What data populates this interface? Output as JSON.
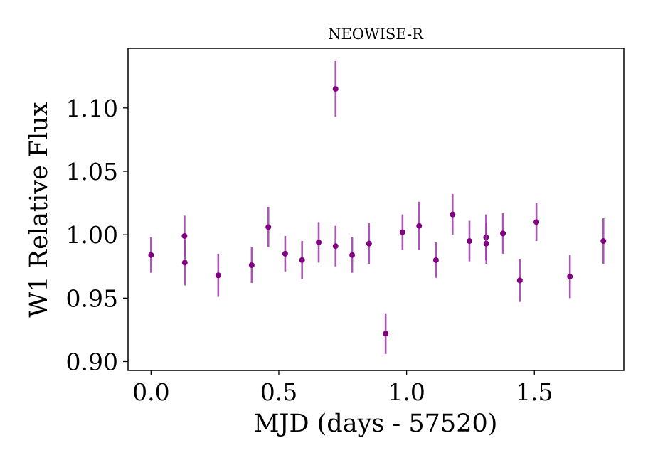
{
  "chart_data": {
    "type": "scatter",
    "title": "NEOWISE-R",
    "xlabel": "MJD (days - 57520)",
    "ylabel": "W1 Relative Flux",
    "xlim": [
      -0.09,
      1.85
    ],
    "ylim": [
      0.893,
      1.147
    ],
    "xticks": [
      {
        "value": 0.0,
        "label": "0.0"
      },
      {
        "value": 0.5,
        "label": "0.5"
      },
      {
        "value": 1.0,
        "label": "1.0"
      },
      {
        "value": 1.5,
        "label": "1.5"
      }
    ],
    "yticks": [
      {
        "value": 0.9,
        "label": "0.90"
      },
      {
        "value": 0.95,
        "label": "0.95"
      },
      {
        "value": 1.0,
        "label": "1.00"
      },
      {
        "value": 1.05,
        "label": "1.05"
      },
      {
        "value": 1.1,
        "label": "1.10"
      }
    ],
    "grid": false,
    "marker_color": "#800080",
    "errorbar_color": "#9b3aa6",
    "series": [
      {
        "x": [
          0.0,
          0.131,
          0.132,
          0.263,
          0.394,
          0.459,
          0.525,
          0.591,
          0.656,
          0.722,
          0.722,
          0.787,
          0.853,
          0.918,
          0.984,
          1.049,
          1.115,
          1.18,
          1.246,
          1.311,
          1.312,
          1.377,
          1.443,
          1.508,
          1.639,
          1.77
        ],
        "y": [
          0.984,
          0.999,
          0.978,
          0.968,
          0.976,
          1.006,
          0.985,
          0.98,
          0.994,
          1.115,
          0.991,
          0.984,
          0.993,
          0.922,
          1.002,
          1.007,
          0.98,
          1.016,
          0.995,
          0.998,
          0.993,
          1.001,
          0.964,
          1.01,
          0.967,
          0.995
        ],
        "err": [
          0.014,
          0.016,
          0.018,
          0.017,
          0.014,
          0.016,
          0.014,
          0.015,
          0.016,
          0.022,
          0.016,
          0.014,
          0.016,
          0.016,
          0.014,
          0.019,
          0.014,
          0.016,
          0.016,
          0.018,
          0.016,
          0.016,
          0.017,
          0.015,
          0.017,
          0.018
        ]
      }
    ]
  }
}
